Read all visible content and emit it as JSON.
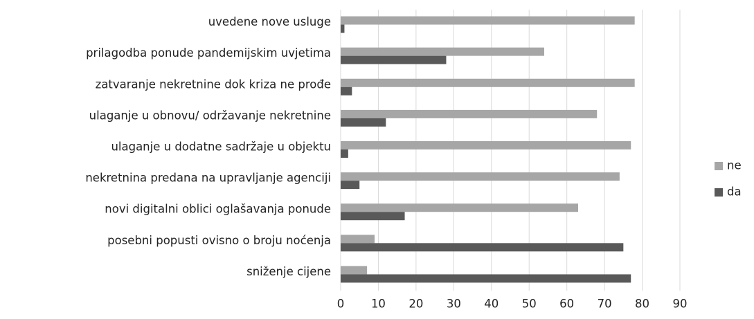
{
  "chart_data": {
    "type": "bar",
    "orientation": "horizontal",
    "categories": [
      "uvedene nove usluge",
      "prilagodba ponude pandemijskim uvjetima",
      "zatvaranje nekretnine dok kriza ne prođe",
      "ulaganje u obnovu/ održavanje nekretnine",
      "ulaganje u dodatne sadržaje u objektu",
      "nekretnina predana na upravljanje agenciji",
      "novi digitalni oblici oglašavanja ponude",
      "posebni popusti ovisno o broju noćenja",
      "sniženje cijene"
    ],
    "series": [
      {
        "name": "ne",
        "color": "#a6a6a6",
        "values": [
          78,
          54,
          78,
          68,
          77,
          74,
          63,
          9,
          7
        ]
      },
      {
        "name": "da",
        "color": "#595959",
        "values": [
          1,
          28,
          3,
          12,
          2,
          5,
          17,
          75,
          77
        ]
      }
    ],
    "xlim": [
      0,
      90
    ],
    "xticks": [
      0,
      10,
      20,
      30,
      40,
      50,
      60,
      70,
      80,
      90
    ],
    "grid": true,
    "legend": "right"
  }
}
